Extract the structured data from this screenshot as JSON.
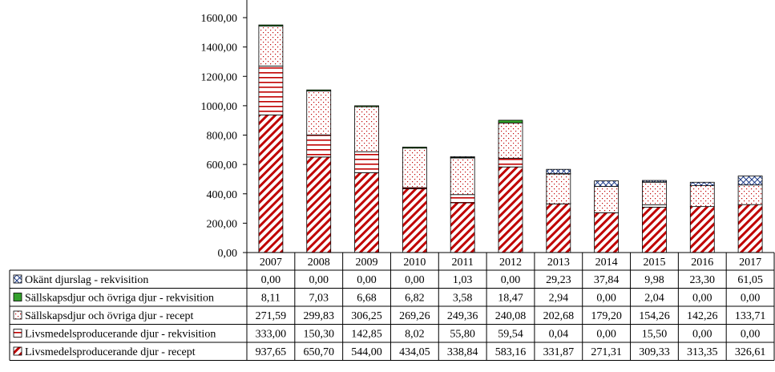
{
  "chart_data": {
    "type": "bar",
    "stacked": true,
    "title": "",
    "xlabel": "",
    "ylabel": "",
    "ylim": [
      0,
      1600
    ],
    "ytick_step": 200,
    "ytick_labels": [
      "0,00",
      "200,00",
      "400,00",
      "600,00",
      "800,00",
      "1000,00",
      "1200,00",
      "1400,00",
      "1600,00"
    ],
    "grid": false,
    "legend": "data-table-left",
    "categories": [
      "2007",
      "2008",
      "2009",
      "2010",
      "2011",
      "2012",
      "2013",
      "2014",
      "2015",
      "2016",
      "2017"
    ],
    "series": [
      {
        "name": "Livsmedelsproducerande djur - recept",
        "color": "#c00000",
        "pattern": "diagonal-hatch",
        "values": [
          937.65,
          650.7,
          544.0,
          434.05,
          338.84,
          583.16,
          331.87,
          271.31,
          309.33,
          313.35,
          326.61
        ],
        "labels": [
          "937,65",
          "650,70",
          "544,00",
          "434,05",
          "338,84",
          "583,16",
          "331,87",
          "271,31",
          "309,33",
          "313,35",
          "326,61"
        ]
      },
      {
        "name": "Livsmedelsproducerande djur - rekvisition",
        "color": "#c00000",
        "pattern": "horizontal-lines",
        "values": [
          333.0,
          150.3,
          142.85,
          8.02,
          55.8,
          59.54,
          0.04,
          0.0,
          15.5,
          0.0,
          0.0
        ],
        "labels": [
          "333,00",
          "150,30",
          "142,85",
          "8,02",
          "55,80",
          "59,54",
          "0,04",
          "0,00",
          "15,50",
          "0,00",
          "0,00"
        ]
      },
      {
        "name": "Sällskapsdjur och övriga djur - recept",
        "color": "#c00000",
        "pattern": "dotted",
        "values": [
          271.59,
          299.83,
          306.25,
          269.26,
          249.36,
          240.08,
          202.68,
          179.2,
          154.26,
          142.26,
          133.71
        ],
        "labels": [
          "271,59",
          "299,83",
          "306,25",
          "269,26",
          "249,36",
          "240,08",
          "202,68",
          "179,20",
          "154,26",
          "142,26",
          "133,71"
        ]
      },
      {
        "name": "Sällskapsdjur och övriga djur - rekvisition",
        "color": "#33a02c",
        "pattern": "solid",
        "values": [
          8.11,
          7.03,
          6.68,
          6.82,
          3.58,
          18.47,
          2.94,
          0.0,
          2.04,
          0.0,
          0.0
        ],
        "labels": [
          "8,11",
          "7,03",
          "6,68",
          "6,82",
          "3,58",
          "18,47",
          "2,94",
          "0,00",
          "2,04",
          "0,00",
          "0,00"
        ]
      },
      {
        "name": "Okänt djurslag - rekvisition",
        "color": "#1f3c88",
        "pattern": "cross-hatch",
        "values": [
          0.0,
          0.0,
          0.0,
          0.0,
          1.03,
          0.0,
          29.23,
          37.84,
          9.98,
          23.3,
          61.05
        ],
        "labels": [
          "0,00",
          "0,00",
          "0,00",
          "0,00",
          "1,03",
          "0,00",
          "29,23",
          "37,84",
          "9,98",
          "23,30",
          "61,05"
        ]
      }
    ]
  }
}
